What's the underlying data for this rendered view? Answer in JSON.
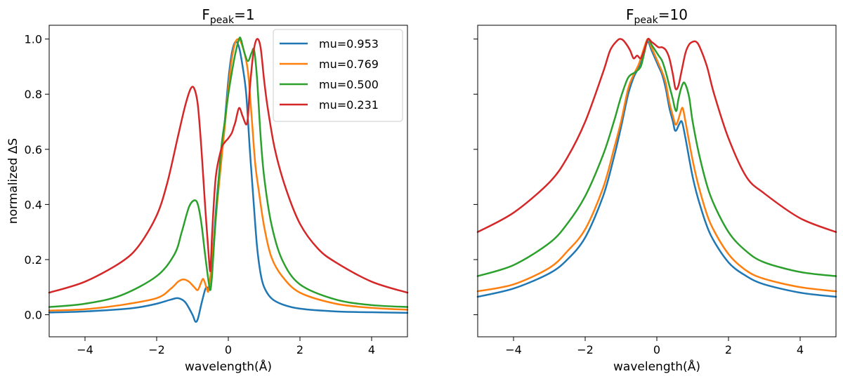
{
  "chart_data": [
    {
      "type": "line",
      "title": {
        "main": "F",
        "sub": "peak",
        "suffix": "=1"
      },
      "xlabel": "wavelength(Å)",
      "ylabel": "normalized ΔS",
      "xlim": [
        -5,
        5
      ],
      "ylim": [
        -0.08,
        1.05
      ],
      "xticks": [
        -4,
        -2,
        0,
        2,
        4
      ],
      "xtick_labels": [
        "−4",
        "−2",
        "0",
        "2",
        "4"
      ],
      "yticks": [
        0.0,
        0.2,
        0.4,
        0.6,
        0.8,
        1.0
      ],
      "ytick_labels": [
        "0.0",
        "0.2",
        "0.4",
        "0.6",
        "0.8",
        "1.0"
      ],
      "show_ytick_labels": true,
      "grid": false,
      "legend": "top-right",
      "series": [
        {
          "name": "mu=0.953",
          "color": "#1f77b4",
          "x": [
            -5,
            -4,
            -3,
            -2.5,
            -2,
            -1.6,
            -1.4,
            -1.2,
            -1.0,
            -0.92,
            -0.85,
            -0.75,
            -0.65,
            -0.6,
            -0.55,
            -0.45,
            -0.3,
            -0.1,
            0.0,
            0.1,
            0.2,
            0.3,
            0.4,
            0.5,
            0.6,
            0.7,
            0.8,
            0.9,
            1.0,
            1.2,
            1.5,
            2,
            3,
            4,
            5
          ],
          "y": [
            0.008,
            0.012,
            0.02,
            0.027,
            0.04,
            0.055,
            0.06,
            0.045,
            0.0,
            -0.025,
            -0.015,
            0.04,
            0.09,
            0.1,
            0.095,
            0.2,
            0.45,
            0.7,
            0.85,
            0.95,
            0.99,
            0.97,
            0.9,
            0.8,
            0.6,
            0.42,
            0.25,
            0.15,
            0.1,
            0.06,
            0.038,
            0.022,
            0.012,
            0.009,
            0.007
          ]
        },
        {
          "name": "mu=0.769",
          "color": "#ff7f0e",
          "x": [
            -5,
            -4,
            -3,
            -2,
            -1.6,
            -1.4,
            -1.25,
            -1.1,
            -0.95,
            -0.85,
            -0.75,
            -0.7,
            -0.65,
            -0.6,
            -0.55,
            -0.45,
            -0.3,
            -0.1,
            0.0,
            0.1,
            0.2,
            0.3,
            0.35,
            0.45,
            0.55,
            0.65,
            0.75,
            0.85,
            1.0,
            1.2,
            1.5,
            2,
            3,
            4,
            5
          ],
          "y": [
            0.015,
            0.02,
            0.035,
            0.06,
            0.095,
            0.12,
            0.128,
            0.12,
            0.1,
            0.09,
            0.12,
            0.13,
            0.115,
            0.095,
            0.09,
            0.2,
            0.42,
            0.68,
            0.82,
            0.93,
            0.99,
            1.0,
            0.99,
            0.95,
            0.88,
            0.72,
            0.55,
            0.45,
            0.32,
            0.21,
            0.14,
            0.08,
            0.04,
            0.025,
            0.018
          ]
        },
        {
          "name": "mu=0.500",
          "color": "#2ca02c",
          "x": [
            -5,
            -4,
            -3,
            -2,
            -1.5,
            -1.3,
            -1.1,
            -0.95,
            -0.85,
            -0.75,
            -0.65,
            -0.55,
            -0.5,
            -0.45,
            -0.35,
            -0.2,
            -0.1,
            0.0,
            0.1,
            0.2,
            0.3,
            0.35,
            0.45,
            0.55,
            0.65,
            0.72,
            0.8,
            0.9,
            1.0,
            1.2,
            1.5,
            2,
            3,
            4,
            5
          ],
          "y": [
            0.028,
            0.04,
            0.07,
            0.14,
            0.22,
            0.3,
            0.39,
            0.415,
            0.4,
            0.33,
            0.22,
            0.12,
            0.09,
            0.15,
            0.35,
            0.6,
            0.7,
            0.8,
            0.88,
            0.95,
            1.0,
            1.0,
            0.95,
            0.92,
            0.95,
            0.96,
            0.86,
            0.65,
            0.5,
            0.33,
            0.2,
            0.11,
            0.055,
            0.035,
            0.028
          ]
        },
        {
          "name": "mu=0.231",
          "color": "#d62728",
          "x": [
            -5,
            -4,
            -3,
            -2.5,
            -2,
            -1.7,
            -1.4,
            -1.2,
            -1.05,
            -0.95,
            -0.85,
            -0.75,
            -0.65,
            -0.55,
            -0.5,
            -0.45,
            -0.35,
            -0.2,
            -0.1,
            0.0,
            0.1,
            0.15,
            0.2,
            0.3,
            0.4,
            0.5,
            0.55,
            0.6,
            0.7,
            0.8,
            0.9,
            1.0,
            1.1,
            1.3,
            1.6,
            2,
            2.5,
            3,
            4,
            5
          ],
          "y": [
            0.08,
            0.12,
            0.19,
            0.25,
            0.36,
            0.48,
            0.65,
            0.76,
            0.82,
            0.82,
            0.76,
            0.6,
            0.4,
            0.22,
            0.16,
            0.3,
            0.5,
            0.6,
            0.625,
            0.64,
            0.66,
            0.68,
            0.7,
            0.75,
            0.72,
            0.69,
            0.72,
            0.82,
            0.95,
            1.0,
            0.97,
            0.85,
            0.75,
            0.6,
            0.46,
            0.33,
            0.24,
            0.19,
            0.12,
            0.08
          ]
        }
      ]
    },
    {
      "type": "line",
      "title": {
        "main": "F",
        "sub": "peak",
        "suffix": "=10"
      },
      "xlabel": "wavelength(Å)",
      "ylabel": "",
      "xlim": [
        -5,
        5
      ],
      "ylim": [
        -0.08,
        1.05
      ],
      "xticks": [
        -4,
        -2,
        0,
        2,
        4
      ],
      "xtick_labels": [
        "−4",
        "−2",
        "0",
        "2",
        "4"
      ],
      "yticks": [
        0.0,
        0.2,
        0.4,
        0.6,
        0.8,
        1.0
      ],
      "ytick_labels": [
        "",
        "",
        "",
        "",
        "",
        ""
      ],
      "show_ytick_labels": false,
      "grid": false,
      "legend": "none",
      "series": [
        {
          "name": "mu=0.953",
          "color": "#1f77b4",
          "x": [
            -5,
            -4,
            -3,
            -2.5,
            -2,
            -1.5,
            -1.2,
            -1.0,
            -0.8,
            -0.65,
            -0.5,
            -0.35,
            -0.25,
            -0.15,
            -0.05,
            0.05,
            0.15,
            0.25,
            0.35,
            0.45,
            0.5,
            0.55,
            0.62,
            0.7,
            0.8,
            1.0,
            1.2,
            1.5,
            2,
            2.5,
            3,
            4,
            5
          ],
          "y": [
            0.065,
            0.095,
            0.15,
            0.2,
            0.28,
            0.43,
            0.57,
            0.68,
            0.8,
            0.86,
            0.9,
            0.96,
            0.99,
            0.96,
            0.93,
            0.9,
            0.87,
            0.82,
            0.75,
            0.7,
            0.67,
            0.67,
            0.69,
            0.7,
            0.64,
            0.5,
            0.4,
            0.29,
            0.19,
            0.14,
            0.11,
            0.08,
            0.065
          ]
        },
        {
          "name": "mu=0.769",
          "color": "#ff7f0e",
          "x": [
            -5,
            -4,
            -3,
            -2.5,
            -2,
            -1.5,
            -1.2,
            -1.0,
            -0.8,
            -0.65,
            -0.5,
            -0.35,
            -0.25,
            -0.15,
            -0.05,
            0.05,
            0.15,
            0.25,
            0.35,
            0.45,
            0.52,
            0.58,
            0.65,
            0.72,
            0.8,
            1.0,
            1.2,
            1.5,
            2,
            2.5,
            3,
            4,
            5
          ],
          "y": [
            0.085,
            0.11,
            0.17,
            0.23,
            0.31,
            0.46,
            0.6,
            0.7,
            0.82,
            0.87,
            0.91,
            0.97,
            1.0,
            0.97,
            0.94,
            0.91,
            0.88,
            0.84,
            0.77,
            0.72,
            0.69,
            0.7,
            0.73,
            0.75,
            0.7,
            0.56,
            0.45,
            0.33,
            0.22,
            0.16,
            0.13,
            0.1,
            0.085
          ]
        },
        {
          "name": "mu=0.500",
          "color": "#2ca02c",
          "x": [
            -5,
            -4,
            -3,
            -2.5,
            -2,
            -1.5,
            -1.2,
            -1.0,
            -0.8,
            -0.6,
            -0.45,
            -0.35,
            -0.25,
            -0.15,
            -0.05,
            0.05,
            0.15,
            0.25,
            0.35,
            0.45,
            0.5,
            0.55,
            0.6,
            0.7,
            0.78,
            0.9,
            1.0,
            1.2,
            1.5,
            2,
            2.5,
            3,
            4,
            5
          ],
          "y": [
            0.14,
            0.18,
            0.26,
            0.33,
            0.43,
            0.58,
            0.7,
            0.79,
            0.86,
            0.88,
            0.9,
            0.95,
            1.0,
            0.98,
            0.96,
            0.94,
            0.92,
            0.88,
            0.83,
            0.78,
            0.75,
            0.74,
            0.78,
            0.83,
            0.84,
            0.79,
            0.7,
            0.57,
            0.43,
            0.3,
            0.23,
            0.19,
            0.155,
            0.14
          ]
        },
        {
          "name": "mu=0.231",
          "color": "#d62728",
          "x": [
            -5,
            -4,
            -3,
            -2.5,
            -2,
            -1.5,
            -1.3,
            -1.1,
            -1.0,
            -0.9,
            -0.75,
            -0.65,
            -0.55,
            -0.45,
            -0.35,
            -0.25,
            -0.15,
            -0.05,
            0.05,
            0.15,
            0.25,
            0.35,
            0.45,
            0.52,
            0.6,
            0.7,
            0.8,
            0.9,
            1.0,
            1.1,
            1.2,
            1.4,
            1.6,
            2,
            2.5,
            3,
            4,
            5
          ],
          "y": [
            0.3,
            0.37,
            0.48,
            0.57,
            0.7,
            0.88,
            0.96,
            0.995,
            1.0,
            0.99,
            0.96,
            0.93,
            0.94,
            0.93,
            0.96,
            1.0,
            0.99,
            0.98,
            0.97,
            0.97,
            0.96,
            0.93,
            0.87,
            0.82,
            0.83,
            0.89,
            0.95,
            0.98,
            0.99,
            0.99,
            0.97,
            0.9,
            0.8,
            0.64,
            0.5,
            0.44,
            0.35,
            0.3
          ]
        }
      ]
    }
  ]
}
